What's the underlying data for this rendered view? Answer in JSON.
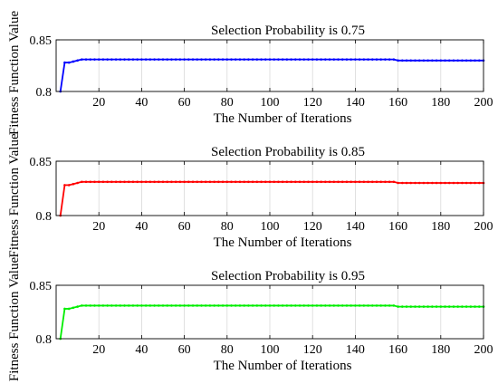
{
  "chart_data": [
    {
      "type": "line",
      "title": "Selection Probability is 0.75",
      "xlabel": "The Number of Iterations",
      "ylabel": "Fitness Function Value",
      "xlim": [
        0,
        200
      ],
      "ylim": [
        0.8,
        0.85
      ],
      "xticks": [
        "20",
        "40",
        "60",
        "80",
        "100",
        "120",
        "140",
        "160",
        "180",
        "200"
      ],
      "yticks": [
        "0.8",
        "0.85"
      ],
      "grid": "vertical",
      "color": "#0000ff",
      "series": [
        {
          "x": [
            2,
            4,
            6,
            8,
            10,
            12,
            158,
            160,
            200
          ],
          "y": [
            0.8,
            0.828,
            0.828,
            0.829,
            0.83,
            0.831,
            0.831,
            0.83,
            0.83
          ]
        }
      ]
    },
    {
      "type": "line",
      "title": "Selection Probability is 0.85",
      "xlabel": "The Number of Iterations",
      "ylabel": "Fitness Function Value",
      "xlim": [
        0,
        200
      ],
      "ylim": [
        0.8,
        0.85
      ],
      "xticks": [
        "20",
        "40",
        "60",
        "80",
        "100",
        "120",
        "140",
        "160",
        "180",
        "200"
      ],
      "yticks": [
        "0.8",
        "0.85"
      ],
      "grid": "vertical",
      "color": "#ff0000",
      "series": [
        {
          "x": [
            2,
            4,
            6,
            8,
            10,
            12,
            158,
            160,
            200
          ],
          "y": [
            0.8,
            0.828,
            0.828,
            0.829,
            0.83,
            0.831,
            0.831,
            0.83,
            0.83
          ]
        }
      ]
    },
    {
      "type": "line",
      "title": "Selection Probability is 0.95",
      "xlabel": "The Number of Iterations",
      "ylabel": "Fitness Function Value",
      "xlim": [
        0,
        200
      ],
      "ylim": [
        0.8,
        0.85
      ],
      "xticks": [
        "20",
        "40",
        "60",
        "80",
        "100",
        "120",
        "140",
        "160",
        "180",
        "200"
      ],
      "yticks": [
        "0.8",
        "0.85"
      ],
      "grid": "vertical",
      "color": "#00ee00",
      "series": [
        {
          "x": [
            2,
            4,
            6,
            8,
            10,
            12,
            158,
            160,
            200
          ],
          "y": [
            0.8,
            0.828,
            0.828,
            0.829,
            0.83,
            0.831,
            0.831,
            0.83,
            0.83
          ]
        }
      ]
    }
  ]
}
